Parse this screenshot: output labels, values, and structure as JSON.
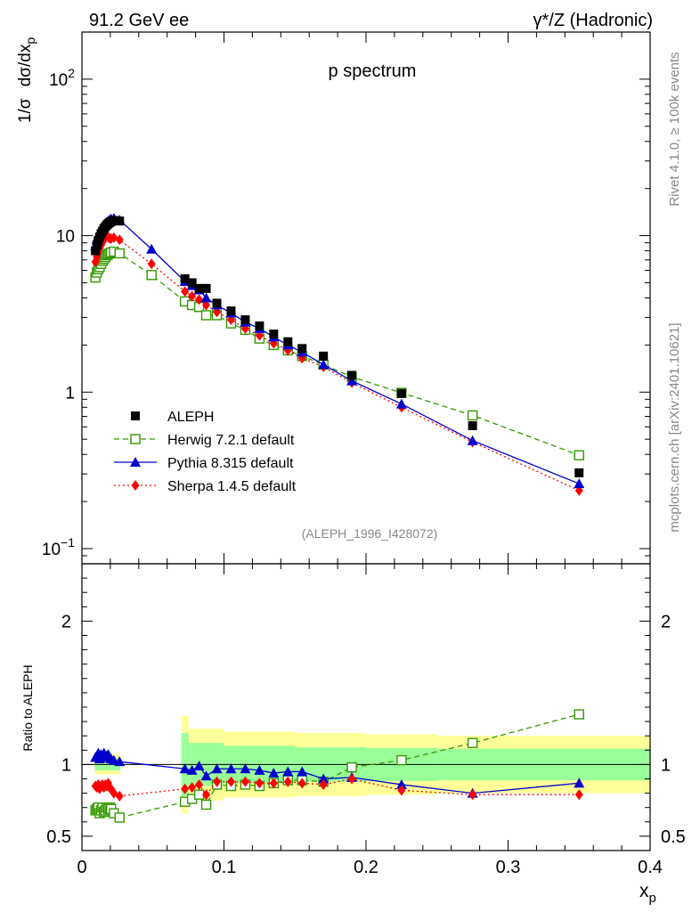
{
  "header": {
    "left": "91.2 GeV ee",
    "right": "γ*/Z (Hadronic)"
  },
  "side": {
    "rivet": "Rivet 4.1.0, ≥ 100k events",
    "mcplots": "mcplots.cern.ch [arXiv:2401.10621]"
  },
  "chart_data": {
    "type": "scatter",
    "title": "p spectrum",
    "analysis_label": "(ALEPH_1996_I428072)",
    "ylabel": "1/σ dσ/dx_p",
    "ylabel_parts": {
      "a": "1/σ",
      "b": "dσ/dx",
      "sub": "p"
    },
    "xlabel": "x_p",
    "xlabel_parts": {
      "a": "x",
      "sub": "p"
    },
    "ratio_ylabel": "Ratio to ALEPH",
    "xlim": [
      0,
      0.4
    ],
    "ylim": [
      0.08,
      200
    ],
    "yscale": "log",
    "ratio_ylim": [
      0.4,
      2.4
    ],
    "main_yticks": [
      {
        "value": 100,
        "base": "10",
        "exp": "2"
      },
      {
        "value": 10,
        "base": "10",
        "exp": ""
      },
      {
        "value": 1,
        "base": "1",
        "exp": ""
      },
      {
        "value": 0.1,
        "base": "10",
        "exp": "−1"
      }
    ],
    "ratio_yticks": [
      {
        "value": 2,
        "label": "2"
      },
      {
        "value": 1,
        "label": "1"
      },
      {
        "value": 0.5,
        "label": "0.5"
      }
    ],
    "xticks": [
      {
        "value": 0,
        "label": "0"
      },
      {
        "value": 0.1,
        "label": "0.1"
      },
      {
        "value": 0.2,
        "label": "0.2"
      },
      {
        "value": 0.3,
        "label": "0.3"
      },
      {
        "value": 0.4,
        "label": "0.4"
      }
    ],
    "series": [
      {
        "name": "ALEPH",
        "legend": "ALEPH",
        "color": "#000000",
        "marker": "filled-square",
        "x": [
          0.0095,
          0.0105,
          0.0115,
          0.0125,
          0.0135,
          0.0145,
          0.0155,
          0.0165,
          0.0175,
          0.0185,
          0.0195,
          0.0205,
          0.0225,
          0.0265,
          0.0725,
          0.0775,
          0.0825,
          0.0875,
          0.095,
          0.105,
          0.115,
          0.125,
          0.135,
          0.145,
          0.155,
          0.17,
          0.19,
          0.225,
          0.275,
          0.35
        ],
        "y": [
          8.0,
          8.7,
          9.3,
          9.8,
          10.3,
          10.7,
          11.1,
          11.4,
          11.7,
          11.9,
          12.1,
          12.3,
          12.5,
          12.4,
          5.3,
          5.0,
          4.6,
          4.6,
          3.7,
          3.3,
          2.9,
          2.65,
          2.35,
          2.1,
          1.9,
          1.7,
          1.28,
          0.98,
          0.61,
          0.305
        ]
      },
      {
        "name": "Herwig 7.2.1 default",
        "legend": "Herwig 7.2.1 default",
        "color": "#339900",
        "marker": "open-square",
        "line": "dashed",
        "x": [
          0.0095,
          0.0105,
          0.0115,
          0.0125,
          0.0135,
          0.0145,
          0.0155,
          0.0165,
          0.0175,
          0.0185,
          0.0195,
          0.0205,
          0.0225,
          0.0265,
          0.049,
          0.0725,
          0.0775,
          0.0825,
          0.0875,
          0.095,
          0.105,
          0.115,
          0.125,
          0.135,
          0.145,
          0.155,
          0.17,
          0.19,
          0.225,
          0.275,
          0.35
        ],
        "y": [
          5.4,
          5.8,
          6.1,
          6.3,
          6.6,
          6.9,
          7.1,
          7.3,
          7.5,
          7.6,
          7.7,
          7.8,
          7.9,
          7.7,
          5.6,
          3.8,
          3.6,
          3.5,
          3.1,
          3.1,
          2.75,
          2.5,
          2.2,
          2.0,
          1.85,
          1.7,
          1.5,
          1.25,
          0.99,
          0.71,
          0.395
        ]
      },
      {
        "name": "Pythia 8.315 default",
        "legend": "Pythia 8.315 default",
        "color": "#0000cc",
        "marker": "filled-triangle",
        "line": "solid",
        "x": [
          0.0095,
          0.0105,
          0.0115,
          0.0125,
          0.0135,
          0.0145,
          0.0155,
          0.0165,
          0.0175,
          0.0185,
          0.0195,
          0.0205,
          0.0225,
          0.0265,
          0.049,
          0.0725,
          0.0775,
          0.0825,
          0.0875,
          0.095,
          0.105,
          0.115,
          0.125,
          0.135,
          0.145,
          0.155,
          0.17,
          0.19,
          0.225,
          0.275,
          0.35
        ],
        "y": [
          8.6,
          9.4,
          10.0,
          10.5,
          11.0,
          11.3,
          11.7,
          12.0,
          12.2,
          12.4,
          12.6,
          12.8,
          12.9,
          12.6,
          8.2,
          5.1,
          4.8,
          4.5,
          4.0,
          3.6,
          3.2,
          2.8,
          2.55,
          2.25,
          2.0,
          1.8,
          1.5,
          1.18,
          0.84,
          0.49,
          0.26
        ]
      },
      {
        "name": "Sherpa 1.4.5 default",
        "legend": "Sherpa 1.4.5 default",
        "color": "#ff0000",
        "marker": "filled-diamond",
        "line": "dotted",
        "x": [
          0.0095,
          0.0105,
          0.0115,
          0.0125,
          0.0135,
          0.0145,
          0.0155,
          0.0165,
          0.0175,
          0.0185,
          0.0195,
          0.0205,
          0.0225,
          0.0265,
          0.049,
          0.0725,
          0.0775,
          0.0825,
          0.0875,
          0.095,
          0.105,
          0.115,
          0.125,
          0.135,
          0.145,
          0.155,
          0.17,
          0.19,
          0.225,
          0.275,
          0.35
        ],
        "y": [
          6.8,
          7.3,
          7.8,
          8.3,
          8.7,
          9.1,
          9.5,
          9.7,
          9.9,
          9.8,
          9.6,
          9.6,
          9.7,
          9.4,
          6.6,
          4.4,
          4.1,
          3.9,
          3.6,
          3.25,
          2.9,
          2.55,
          2.3,
          2.05,
          1.85,
          1.65,
          1.45,
          1.15,
          0.8,
          0.48,
          0.235
        ]
      }
    ],
    "ratio_series": [
      {
        "name": "Herwig 7.2.1 default",
        "x": [
          0.0095,
          0.0105,
          0.0115,
          0.0125,
          0.0135,
          0.0145,
          0.0155,
          0.0165,
          0.0175,
          0.0185,
          0.0195,
          0.0205,
          0.0225,
          0.0265,
          0.0725,
          0.0775,
          0.0825,
          0.0875,
          0.095,
          0.105,
          0.115,
          0.125,
          0.135,
          0.145,
          0.155,
          0.17,
          0.19,
          0.225,
          0.275,
          0.35
        ],
        "y": [
          0.68,
          0.69,
          0.7,
          0.66,
          0.68,
          0.7,
          0.67,
          0.68,
          0.7,
          0.69,
          0.7,
          0.69,
          0.66,
          0.63,
          0.74,
          0.76,
          0.79,
          0.72,
          0.86,
          0.85,
          0.86,
          0.85,
          0.87,
          0.89,
          0.89,
          0.88,
          0.98,
          1.03,
          1.15,
          1.35
        ]
      },
      {
        "name": "Pythia 8.315 default",
        "x": [
          0.0095,
          0.0105,
          0.0115,
          0.0125,
          0.0135,
          0.0145,
          0.0155,
          0.0165,
          0.0175,
          0.0185,
          0.0195,
          0.0205,
          0.0225,
          0.0265,
          0.0725,
          0.0775,
          0.0825,
          0.0875,
          0.095,
          0.105,
          0.115,
          0.125,
          0.135,
          0.145,
          0.155,
          0.17,
          0.19,
          0.225,
          0.275,
          0.35
        ],
        "y": [
          1.05,
          1.06,
          1.08,
          1.04,
          1.07,
          1.06,
          1.08,
          1.05,
          1.06,
          1.07,
          1.05,
          1.04,
          1.03,
          1.02,
          0.97,
          0.96,
          0.99,
          0.92,
          0.97,
          0.97,
          0.97,
          0.96,
          0.94,
          0.95,
          0.95,
          0.9,
          0.91,
          0.86,
          0.8,
          0.87
        ]
      },
      {
        "name": "Sherpa 1.4.5 default",
        "x": [
          0.0095,
          0.0105,
          0.0115,
          0.0125,
          0.0135,
          0.0145,
          0.0155,
          0.0165,
          0.0175,
          0.0185,
          0.0195,
          0.0205,
          0.0225,
          0.0265,
          0.0725,
          0.0775,
          0.0825,
          0.0875,
          0.095,
          0.105,
          0.115,
          0.125,
          0.135,
          0.145,
          0.155,
          0.17,
          0.19,
          0.225,
          0.275,
          0.35
        ],
        "y": [
          0.85,
          0.84,
          0.86,
          0.83,
          0.85,
          0.86,
          0.84,
          0.86,
          0.85,
          0.87,
          0.84,
          0.83,
          0.8,
          0.78,
          0.83,
          0.84,
          0.86,
          0.79,
          0.88,
          0.88,
          0.88,
          0.87,
          0.87,
          0.88,
          0.87,
          0.86,
          0.9,
          0.82,
          0.79,
          0.79
        ]
      }
    ],
    "ratio_bands": {
      "inner_color": "#99ff99",
      "outer_color": "#ffff99",
      "segments": [
        {
          "x0": 0.009,
          "x1": 0.027,
          "inner": [
            0.96,
            1.04
          ],
          "outer": [
            0.93,
            1.07
          ]
        },
        {
          "x0": 0.07,
          "x1": 0.075,
          "inner": [
            0.78,
            1.22
          ],
          "outer": [
            0.66,
            1.34
          ]
        },
        {
          "x0": 0.075,
          "x1": 0.1,
          "inner": [
            0.85,
            1.15
          ],
          "outer": [
            0.75,
            1.25
          ]
        },
        {
          "x0": 0.1,
          "x1": 0.15,
          "inner": [
            0.87,
            1.13
          ],
          "outer": [
            0.77,
            1.23
          ]
        },
        {
          "x0": 0.15,
          "x1": 0.2,
          "inner": [
            0.88,
            1.12
          ],
          "outer": [
            0.78,
            1.22
          ]
        },
        {
          "x0": 0.2,
          "x1": 0.25,
          "inner": [
            0.885,
            1.115
          ],
          "outer": [
            0.79,
            1.21
          ]
        },
        {
          "x0": 0.25,
          "x1": 0.4,
          "inner": [
            0.89,
            1.11
          ],
          "outer": [
            0.8,
            1.2
          ]
        }
      ]
    }
  }
}
